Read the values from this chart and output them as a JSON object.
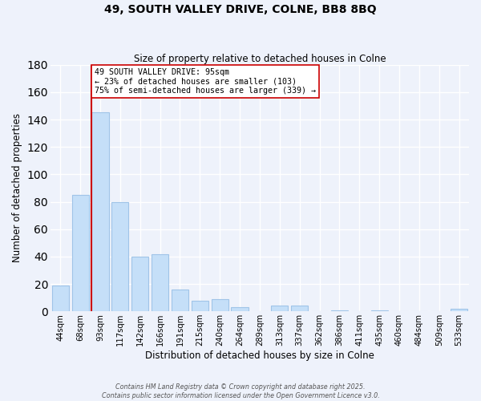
{
  "title": "49, SOUTH VALLEY DRIVE, COLNE, BB8 8BQ",
  "subtitle": "Size of property relative to detached houses in Colne",
  "xlabel": "Distribution of detached houses by size in Colne",
  "ylabel": "Number of detached properties",
  "bar_color": "#c5dff8",
  "bar_edge_color": "#a0c4e8",
  "background_color": "#eef2fb",
  "grid_color": "white",
  "categories": [
    "44sqm",
    "68sqm",
    "93sqm",
    "117sqm",
    "142sqm",
    "166sqm",
    "191sqm",
    "215sqm",
    "240sqm",
    "264sqm",
    "289sqm",
    "313sqm",
    "337sqm",
    "362sqm",
    "386sqm",
    "411sqm",
    "435sqm",
    "460sqm",
    "484sqm",
    "509sqm",
    "533sqm"
  ],
  "values": [
    19,
    85,
    145,
    80,
    40,
    42,
    16,
    8,
    9,
    3,
    0,
    4,
    4,
    0,
    1,
    0,
    1,
    0,
    0,
    0,
    2
  ],
  "ylim": [
    0,
    180
  ],
  "yticks": [
    0,
    20,
    40,
    60,
    80,
    100,
    120,
    140,
    160,
    180
  ],
  "property_line_index": 2,
  "property_line_color": "#cc0000",
  "annotation_title": "49 SOUTH VALLEY DRIVE: 95sqm",
  "annotation_line1": "← 23% of detached houses are smaller (103)",
  "annotation_line2": "75% of semi-detached houses are larger (339) →",
  "annotation_box_color": "white",
  "annotation_box_edge_color": "#cc0000",
  "footer_line1": "Contains HM Land Registry data © Crown copyright and database right 2025.",
  "footer_line2": "Contains public sector information licensed under the Open Government Licence v3.0."
}
